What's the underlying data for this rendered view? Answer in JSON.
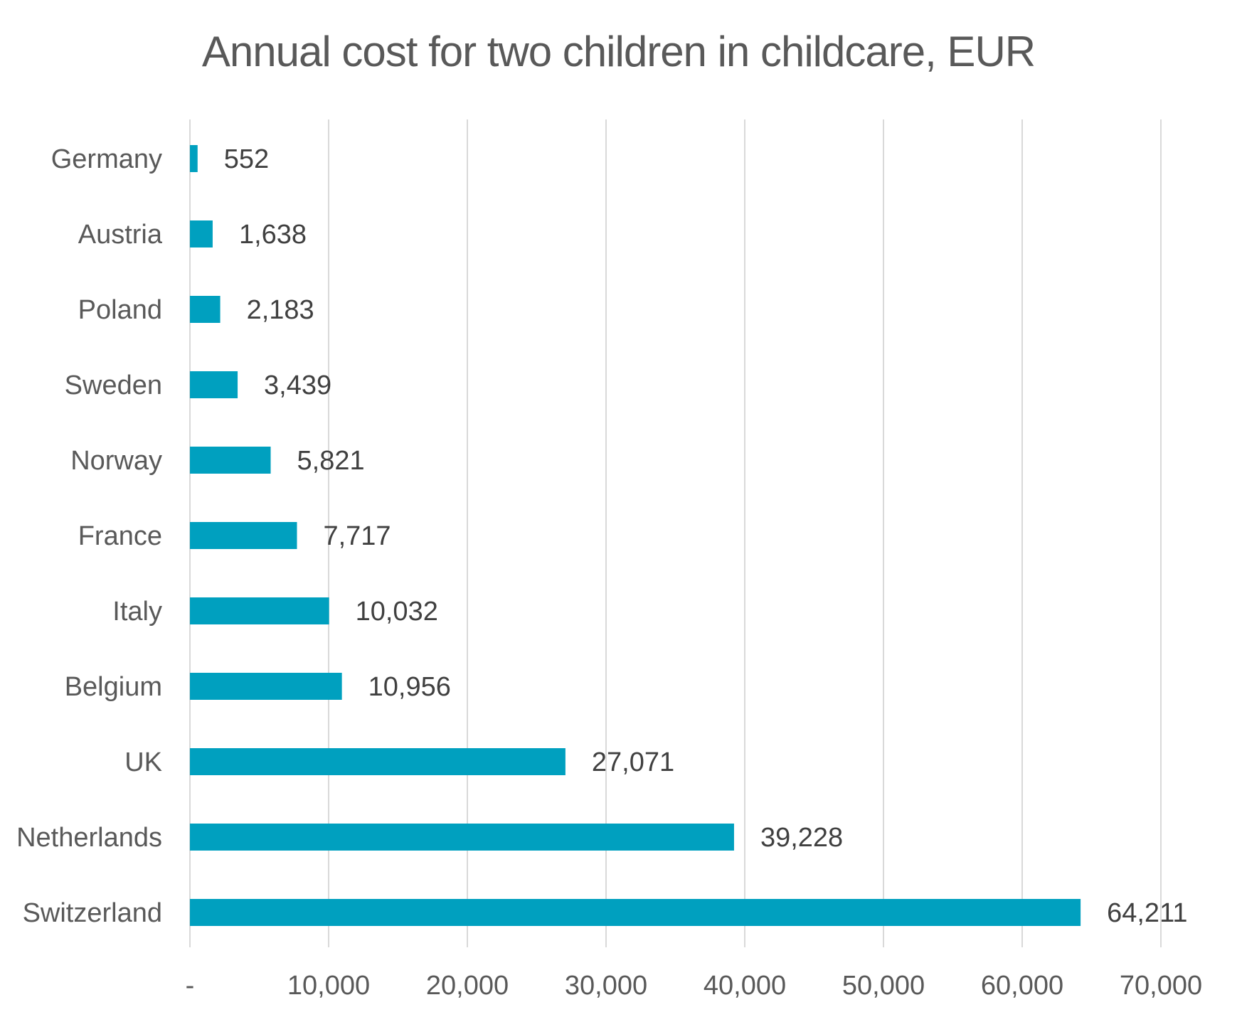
{
  "chart_data": {
    "type": "bar",
    "orientation": "horizontal",
    "title": "Annual cost for two children in childcare, EUR",
    "categories": [
      "Germany",
      "Austria",
      "Poland",
      "Sweden",
      "Norway",
      "France",
      "Italy",
      "Belgium",
      "UK",
      "Netherlands",
      "Switzerland"
    ],
    "values": [
      552,
      1638,
      2183,
      3439,
      5821,
      7717,
      10032,
      10956,
      27071,
      39228,
      64211
    ],
    "value_labels": [
      "552",
      "1,638",
      "2,183",
      "3,439",
      "5,821",
      "7,717",
      "10,032",
      "10,956",
      "27,071",
      "39,228",
      "64,211"
    ],
    "xlim": [
      0,
      70000
    ],
    "x_ticks": [
      0,
      10000,
      20000,
      30000,
      40000,
      50000,
      60000,
      70000
    ],
    "x_tick_labels": [
      "-",
      "10,000",
      "20,000",
      "30,000",
      "40,000",
      "50,000",
      "60,000",
      "70,000"
    ],
    "xlabel": "",
    "ylabel": "",
    "grid": "vertical",
    "legend": "none",
    "colors": {
      "bar": "#00a0bf",
      "grid": "#d9d9d9",
      "text": "#595959"
    }
  }
}
